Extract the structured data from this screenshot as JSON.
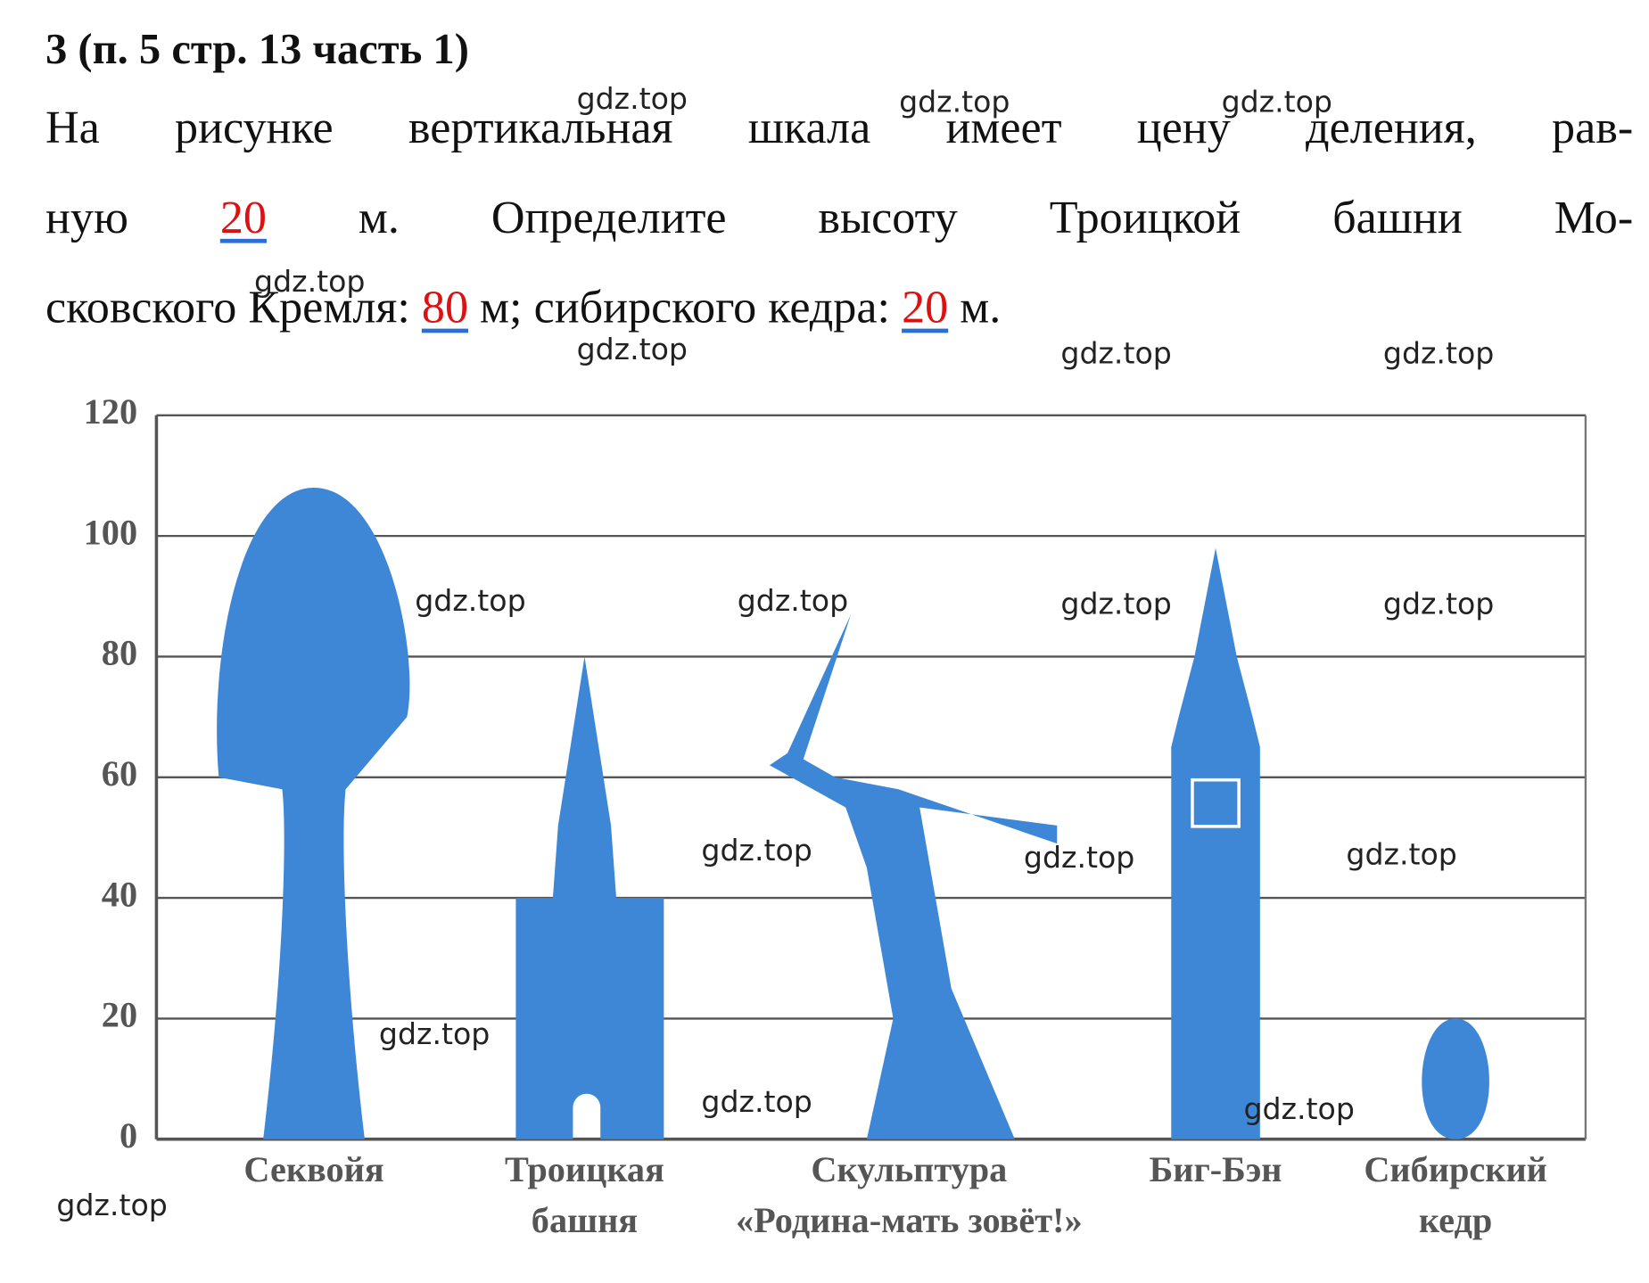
{
  "title": "3 (п. 5 стр. 13 часть 1)",
  "question": {
    "lines": [
      [
        "На рисунке вертикальная шкала имеет цену деления, рав-"
      ],
      [
        "ную ",
        "20",
        " м. Определите высоту Троицкой башни Мо-"
      ],
      [
        "сковского Кремля: ",
        "80",
        " м; сибирского кедра: ",
        "20",
        " м."
      ]
    ]
  },
  "figure": {
    "ylim": [
      0,
      120
    ],
    "yticks": [
      0,
      20,
      40,
      60,
      80,
      100,
      120
    ],
    "color": "#3d87d6",
    "objects": [
      {
        "name": [
          "Секвойя"
        ],
        "height": 108
      },
      {
        "name": [
          "Троицкая",
          "башня"
        ],
        "height": 80
      },
      {
        "name": [
          "Скульптура",
          "«Родина-мать зовёт!»"
        ],
        "height": 87
      },
      {
        "name": [
          "Биг-Бэн"
        ],
        "height": 98
      },
      {
        "name": [
          "Сибирский",
          "кедр"
        ],
        "height": 20
      }
    ]
  },
  "watermark": "gdz.top"
}
